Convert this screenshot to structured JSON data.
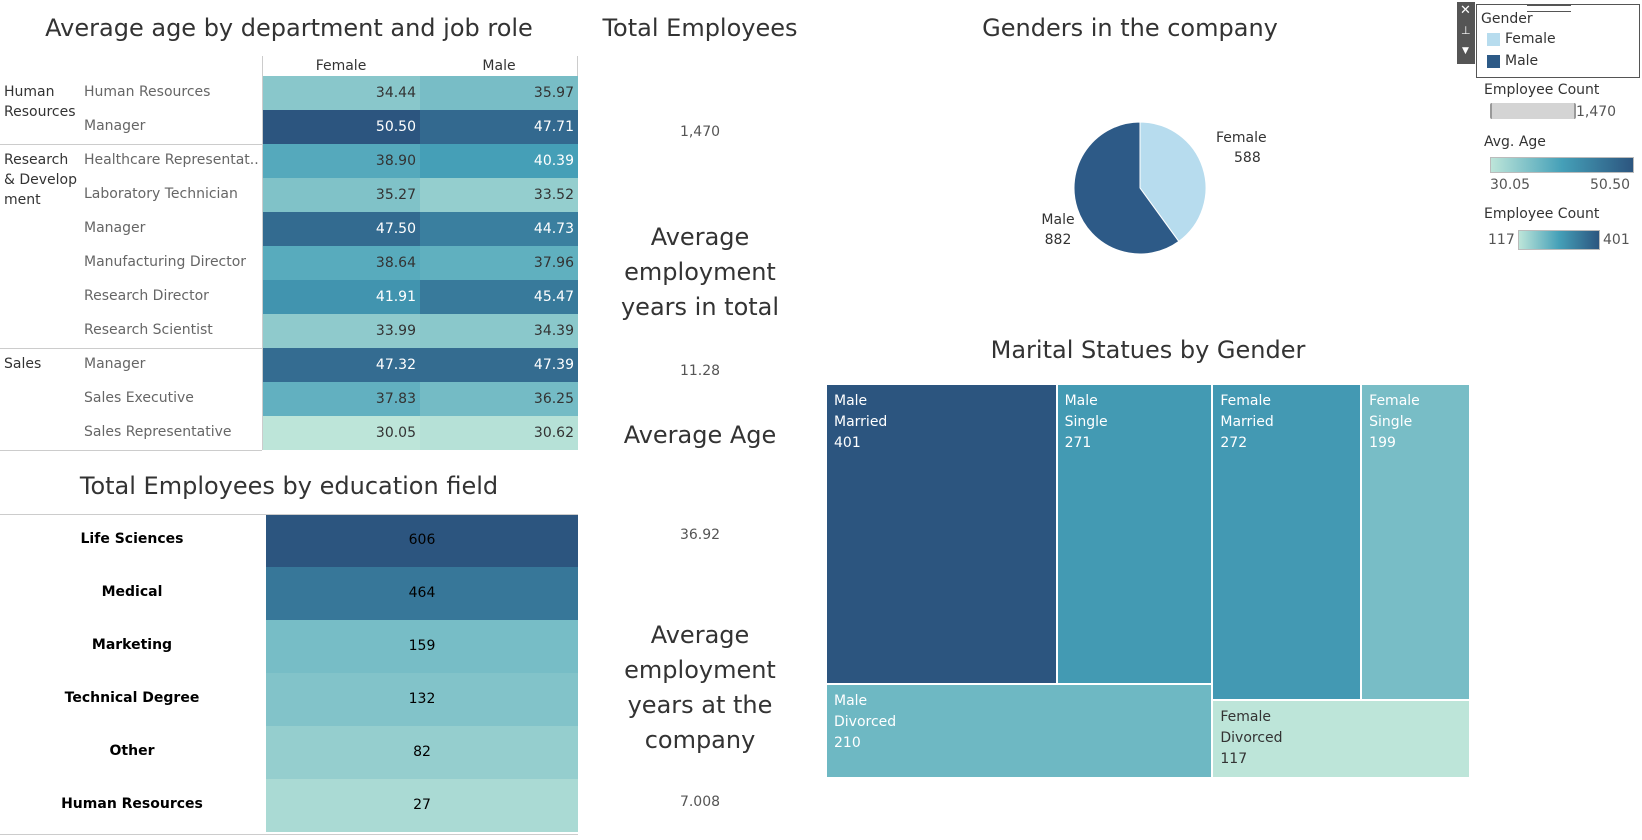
{
  "titles": {
    "age": "Average age by department and job role",
    "total": "Total Employees",
    "genders": "Genders in the company",
    "edu": "Total Employees by education field",
    "marital": "Marital Statues by Gender"
  },
  "kpis": [
    {
      "title": "Total Employees",
      "value": "1,470"
    },
    {
      "title": "Average employment years in total",
      "value": "11.28"
    },
    {
      "title": "Average Age",
      "value": "36.92"
    },
    {
      "title": "Average employment years at the company",
      "value": "7.008"
    }
  ],
  "legend": {
    "gender_title": "Gender",
    "female": "Female",
    "male": "Male",
    "female_color": "#b7dcee",
    "male_color": "#2d5a87",
    "emp_count_title": "Employee Count",
    "emp_count_value": "1,470",
    "avg_age_title": "Avg. Age",
    "avg_age_min": "30.05",
    "avg_age_max": "50.50",
    "emp_count2_title": "Employee Count",
    "emp_count2_min": "117",
    "emp_count2_max": "401",
    "icons": [
      "close-icon",
      "pin-icon",
      "dropdown-icon"
    ]
  },
  "chart_data": [
    {
      "type": "heatmap",
      "title": "Average age by department and job role",
      "columns": [
        "Female",
        "Male"
      ],
      "rows": [
        {
          "department": "Human Resources",
          "role": "Human Resources",
          "values": [
            34.44,
            35.97
          ]
        },
        {
          "department": "Human Resources",
          "role": "Manager",
          "values": [
            50.5,
            47.71
          ]
        },
        {
          "department": "Research & Development",
          "role": "Healthcare Representat..",
          "values": [
            38.9,
            40.39
          ]
        },
        {
          "department": "Research & Development",
          "role": "Laboratory Technician",
          "values": [
            35.27,
            33.52
          ]
        },
        {
          "department": "Research & Development",
          "role": "Manager",
          "values": [
            47.5,
            44.73
          ]
        },
        {
          "department": "Research & Development",
          "role": "Manufacturing Director",
          "values": [
            38.64,
            37.96
          ]
        },
        {
          "department": "Research & Development",
          "role": "Research Director",
          "values": [
            41.91,
            45.47
          ]
        },
        {
          "department": "Research & Development",
          "role": "Research Scientist",
          "values": [
            33.99,
            34.39
          ]
        },
        {
          "department": "Sales",
          "role": "Manager",
          "values": [
            47.32,
            47.39
          ]
        },
        {
          "department": "Sales",
          "role": "Sales Executive",
          "values": [
            37.83,
            36.25
          ]
        },
        {
          "department": "Sales",
          "role": "Sales Representative",
          "values": [
            30.05,
            30.62
          ]
        }
      ],
      "departments": [
        {
          "label": "Human\nResources"
        },
        {
          "label": "Research\n& Develop\nment"
        },
        {
          "label": "Sales"
        }
      ]
    },
    {
      "type": "table",
      "title": "Total Employees by education field",
      "categories": [
        "Life Sciences",
        "Medical",
        "Marketing",
        "Technical Degree",
        "Other",
        "Human Resources"
      ],
      "values": [
        606,
        464,
        159,
        132,
        82,
        27
      ]
    },
    {
      "type": "pie",
      "title": "Genders in the company",
      "categories": [
        "Female",
        "Male"
      ],
      "values": [
        588,
        882
      ],
      "colors": [
        "#b7dcee",
        "#2d5a87"
      ]
    },
    {
      "type": "treemap",
      "title": "Marital Statues by Gender",
      "items": [
        {
          "gender": "Male",
          "status": "Married",
          "value": 401
        },
        {
          "gender": "Male",
          "status": "Single",
          "value": 271
        },
        {
          "gender": "Male",
          "status": "Divorced",
          "value": 210
        },
        {
          "gender": "Female",
          "status": "Married",
          "value": 272
        },
        {
          "gender": "Female",
          "status": "Single",
          "value": 199
        },
        {
          "gender": "Female",
          "status": "Divorced",
          "value": 117
        }
      ]
    }
  ]
}
